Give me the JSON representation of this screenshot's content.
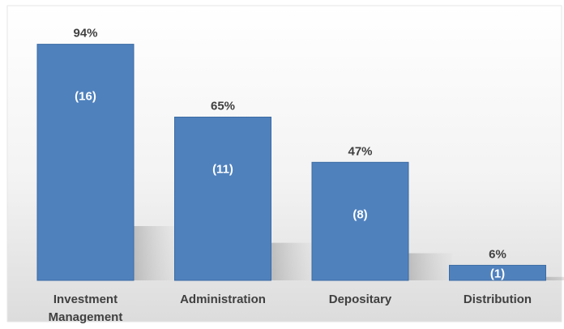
{
  "chart_data": {
    "type": "bar",
    "title": "",
    "xlabel": "",
    "ylabel": "",
    "ylim": [
      0,
      100
    ],
    "grid": false,
    "legend": "none",
    "categories": [
      [
        "Investment",
        "Management"
      ],
      [
        "Administration"
      ],
      [
        "Depositary"
      ],
      [
        "Distribution"
      ]
    ],
    "values": [
      94,
      65,
      47,
      6
    ],
    "value_labels": [
      "94%",
      "65%",
      "47%",
      "6%"
    ],
    "count_labels": [
      "(16)",
      "(11)",
      "(8)",
      "(1)"
    ],
    "bar_color": "#4f81bd",
    "bar_edge_color": "#3b6ba3",
    "label_color": "#404040",
    "count_label_color": "#ffffff"
  }
}
